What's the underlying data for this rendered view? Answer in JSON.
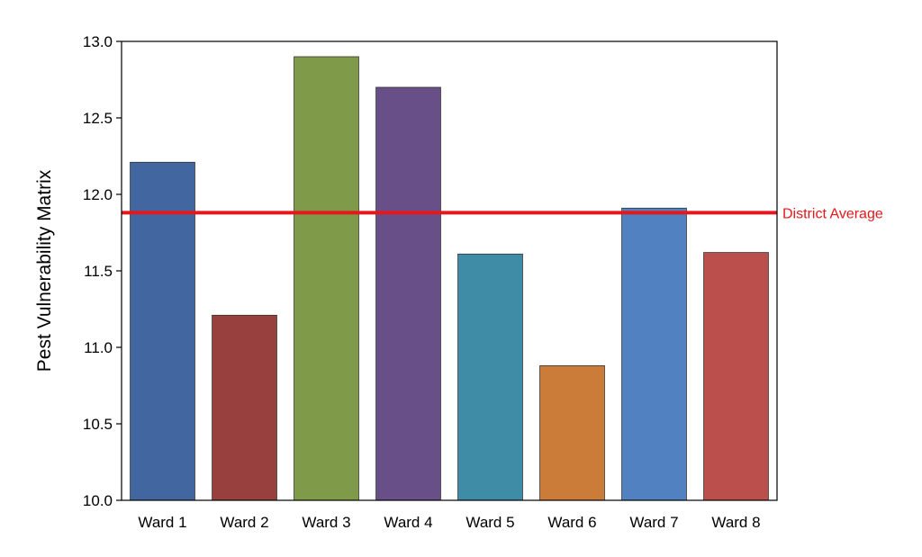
{
  "chart_data": {
    "type": "bar",
    "title": "",
    "xlabel": "",
    "ylabel": "Pest Vulnerability Matrix",
    "ylim": [
      10.0,
      13.0
    ],
    "yticks": [
      "10.0",
      "10.5",
      "11.0",
      "11.5",
      "12.0",
      "12.5",
      "13.0"
    ],
    "categories": [
      "Ward 1",
      "Ward 2",
      "Ward 3",
      "Ward 4",
      "Ward 5",
      "Ward 6",
      "Ward 7",
      "Ward 8"
    ],
    "values": [
      12.21,
      11.21,
      12.9,
      12.7,
      11.61,
      10.88,
      11.91,
      11.62
    ],
    "colors": [
      "#4267A0",
      "#98403E",
      "#7F9A48",
      "#684F87",
      "#3E8CA5",
      "#CC7C39",
      "#5181C0",
      "#BA4F4C"
    ],
    "reference_line": {
      "label": "District Average",
      "value": 11.88,
      "color": "#E3181C"
    },
    "grid": false,
    "legend": "none"
  }
}
